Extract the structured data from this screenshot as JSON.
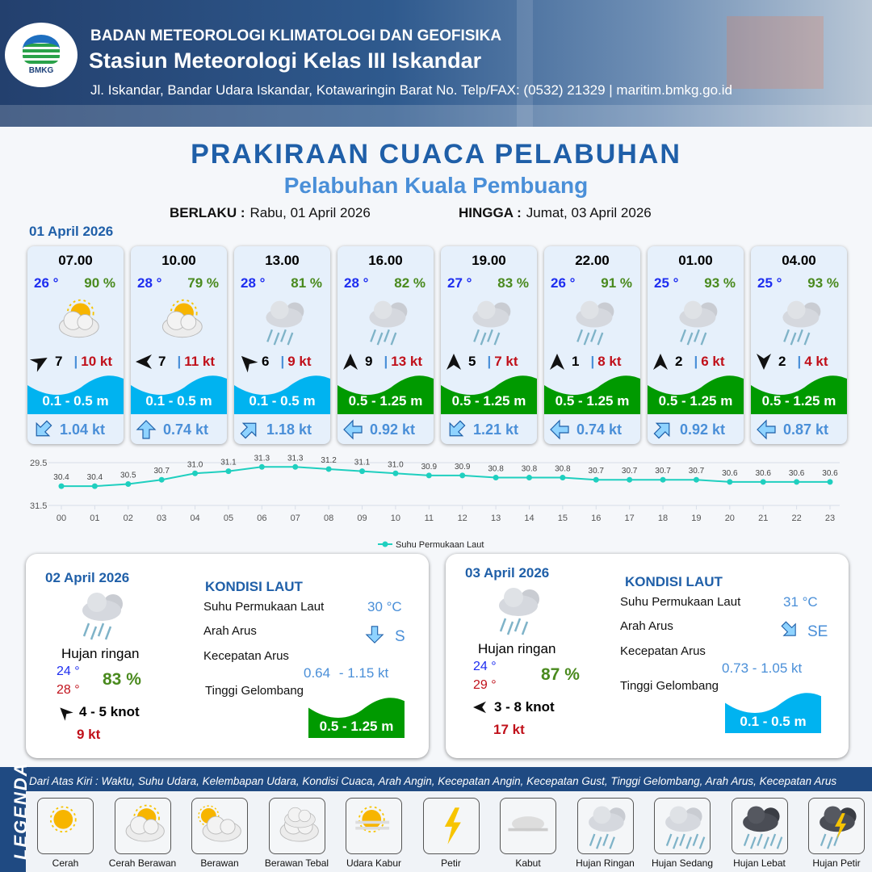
{
  "header": {
    "org": "BADAN METEOROLOGI KLIMATOLOGI DAN GEOFISIKA",
    "station": "Stasiun Meteorologi Kelas III Iskandar",
    "address": "Jl. Iskandar, Bandar Udara Iskandar, Kotawaringin Barat No. Telp/FAX: (0532) 21329 | maritim.bmkg.go.id",
    "logo_text": "BMKG"
  },
  "title": "PRAKIRAAN CUACA PELABUHAN",
  "subtitle": "Pelabuhan Kuala Pembuang",
  "validity": {
    "from_label": "BERLAKU :",
    "from": "Rabu, 01 April 2026",
    "to_label": "HINGGA :",
    "to": "Jumat, 03 April 2026"
  },
  "day1": {
    "date": "01 April 2026",
    "forecasts": [
      {
        "time": "07.00",
        "temp": "26 °",
        "rh": "90 %",
        "icon": "cerah-berawan",
        "wind_dir_deg": 60,
        "wind": "7",
        "gust": "10 kt",
        "wave": "0.1 - 0.5 m",
        "wave_color": "#00b3f0",
        "current_dir_deg": 225,
        "current": "1.04 kt"
      },
      {
        "time": "10.00",
        "temp": "28 °",
        "rh": "79 %",
        "icon": "cerah-berawan",
        "wind_dir_deg": 270,
        "wind": "7",
        "gust": "11 kt",
        "wave": "0.1 - 0.5 m",
        "wave_color": "#00b3f0",
        "current_dir_deg": 0,
        "current": "0.74 kt"
      },
      {
        "time": "13.00",
        "temp": "28 °",
        "rh": "81 %",
        "icon": "hujan-ringan",
        "wind_dir_deg": 315,
        "wind": "6",
        "gust": "9 kt",
        "wave": "0.1 - 0.5 m",
        "wave_color": "#00b3f0",
        "current_dir_deg": 45,
        "current": "1.18 kt"
      },
      {
        "time": "16.00",
        "temp": "28 °",
        "rh": "82 %",
        "icon": "hujan-ringan",
        "wind_dir_deg": 0,
        "wind": "9",
        "gust": "13 kt",
        "wave": "0.5 - 1.25 m",
        "wave_color": "#009a00",
        "current_dir_deg": 270,
        "current": "0.92 kt"
      },
      {
        "time": "19.00",
        "temp": "27 °",
        "rh": "83 %",
        "icon": "hujan-ringan",
        "wind_dir_deg": 0,
        "wind": "5",
        "gust": "7 kt",
        "wave": "0.5 - 1.25 m",
        "wave_color": "#009a00",
        "current_dir_deg": 225,
        "current": "1.21 kt"
      },
      {
        "time": "22.00",
        "temp": "26 °",
        "rh": "91 %",
        "icon": "hujan-ringan",
        "wind_dir_deg": 0,
        "wind": "1",
        "gust": "8 kt",
        "wave": "0.5 - 1.25 m",
        "wave_color": "#009a00",
        "current_dir_deg": 270,
        "current": "0.74 kt"
      },
      {
        "time": "01.00",
        "temp": "25 °",
        "rh": "93 %",
        "icon": "hujan-ringan",
        "wind_dir_deg": 0,
        "wind": "2",
        "gust": "6 kt",
        "wave": "0.5 - 1.25 m",
        "wave_color": "#009a00",
        "current_dir_deg": 45,
        "current": "0.92 kt"
      },
      {
        "time": "04.00",
        "temp": "25 °",
        "rh": "93 %",
        "icon": "hujan-ringan",
        "wind_dir_deg": 180,
        "wind": "2",
        "gust": "4 kt",
        "wave": "0.5 - 1.25 m",
        "wave_color": "#009a00",
        "current_dir_deg": 270,
        "current": "0.87 kt"
      }
    ]
  },
  "chart_data": {
    "type": "line",
    "x": [
      "00",
      "01",
      "02",
      "03",
      "04",
      "05",
      "06",
      "07",
      "08",
      "09",
      "10",
      "11",
      "12",
      "13",
      "14",
      "15",
      "16",
      "17",
      "18",
      "19",
      "20",
      "21",
      "22",
      "23"
    ],
    "series": [
      {
        "name": "Suhu Permukaan Laut",
        "values": [
          30.4,
          30.4,
          30.5,
          30.7,
          31.0,
          31.1,
          31.3,
          31.3,
          31.2,
          31.1,
          31.0,
          30.9,
          30.9,
          30.8,
          30.8,
          30.8,
          30.7,
          30.7,
          30.7,
          30.7,
          30.6,
          30.6,
          30.6,
          30.6
        ]
      }
    ],
    "yticks": [
      "29.5",
      "31.5"
    ],
    "ylim": [
      29.5,
      31.5
    ],
    "color": "#1fcfbf",
    "legend": "bottom",
    "grid": true
  },
  "days": [
    {
      "date": "02 April 2026",
      "icon": "hujan-ringan",
      "condition": "Hujan ringan",
      "tmin": "24 °",
      "tmax": "28 °",
      "rh": "83 %",
      "wind_dir_deg": 315,
      "wind": "4  - 5 knot",
      "gust": "9 kt",
      "sea": {
        "title": "KONDISI LAUT",
        "sst_label": "Suhu Permukaan Laut",
        "sst": "30 °C",
        "dir_label": "Arah Arus",
        "dir": "S",
        "dir_deg": 180,
        "speed_label": "Kecepatan Arus",
        "speed_a": "0.64",
        "speed_b": "- 1.15 kt",
        "wave_label": "Tinggi Gelombang",
        "wave": "0.5 - 1.25 m",
        "wave_color": "#009a00"
      }
    },
    {
      "date": "03 April 2026",
      "icon": "hujan-ringan",
      "condition": "Hujan ringan",
      "tmin": "24 °",
      "tmax": "29 °",
      "rh": "87 %",
      "wind_dir_deg": 270,
      "wind": "3  - 8 knot",
      "gust": "17 kt",
      "sea": {
        "title": "KONDISI LAUT",
        "sst_label": "Suhu Permukaan Laut",
        "sst": "31 °C",
        "dir_label": "Arah Arus",
        "dir": "SE",
        "dir_deg": 135,
        "speed_label": "Kecepatan Arus",
        "speed_a": "0.73 - 1.05 kt",
        "speed_b": "",
        "wave_label": "Tinggi Gelombang",
        "wave": "0.1 - 0.5 m",
        "wave_color": "#00b3f0"
      }
    }
  ],
  "legend": {
    "title": "LEGENDA",
    "description": "Dari Atas Kiri : Waktu, Suhu Udara, Kelembapan Udara, Kondisi Cuaca, Arah Angin, Kecepatan Angin, Kecepatan Gust, Tinggi Gelombang, Arah Arus, Kecepatan Arus",
    "items": [
      {
        "label": "Cerah",
        "icon": "cerah"
      },
      {
        "label": "Cerah Berawan",
        "icon": "cerah-berawan"
      },
      {
        "label": "Berawan",
        "icon": "berawan"
      },
      {
        "label": "Berawan Tebal",
        "icon": "berawan-tebal"
      },
      {
        "label": "Udara Kabur",
        "icon": "udara-kabur"
      },
      {
        "label": "Petir",
        "icon": "petir"
      },
      {
        "label": "Kabut",
        "icon": "kabut"
      },
      {
        "label": "Hujan Ringan",
        "icon": "hujan-ringan"
      },
      {
        "label": "Hujan Sedang",
        "icon": "hujan-sedang"
      },
      {
        "label": "Hujan Lebat",
        "icon": "hujan-lebat"
      },
      {
        "label": "Hujan Petir",
        "icon": "hujan-petir"
      }
    ]
  }
}
